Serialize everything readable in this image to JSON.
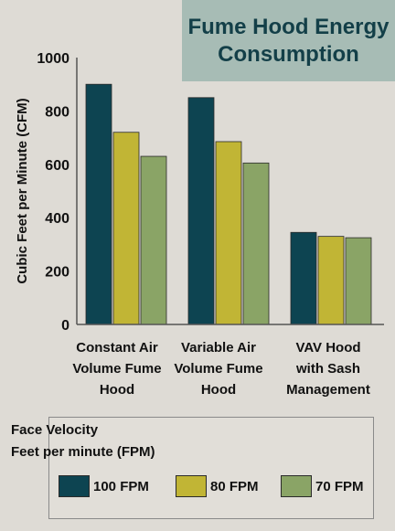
{
  "colors": {
    "background": "#dedbd5",
    "title_bg": "#a7bcb5",
    "title_text": "#133f48",
    "series": [
      "#0d4451",
      "#c1b535",
      "#8aa466"
    ]
  },
  "chart_data": {
    "type": "bar",
    "title_lines": [
      "Fume Hood Energy",
      "Consumption"
    ],
    "ylabel": "Cubic Feet per Minute (CFM)",
    "xlabel": "",
    "ylim": [
      0,
      1000
    ],
    "yticks": [
      0,
      200,
      400,
      600,
      800,
      1000
    ],
    "grid": false,
    "categories": [
      [
        "Constant Air",
        "Volume Fume",
        "Hood"
      ],
      [
        "Variable Air",
        "Volume Fume",
        "Hood"
      ],
      [
        "VAV Hood",
        "with Sash",
        "Management"
      ]
    ],
    "series": [
      {
        "name": "100 FPM",
        "values": [
          900,
          850,
          345
        ]
      },
      {
        "name": "80 FPM",
        "values": [
          720,
          685,
          330
        ]
      },
      {
        "name": "70 FPM",
        "values": [
          630,
          605,
          325
        ]
      }
    ],
    "legend": {
      "title_lines": [
        "Face Velocity",
        "Feet per minute (FPM)"
      ],
      "placement": "bottom"
    }
  }
}
